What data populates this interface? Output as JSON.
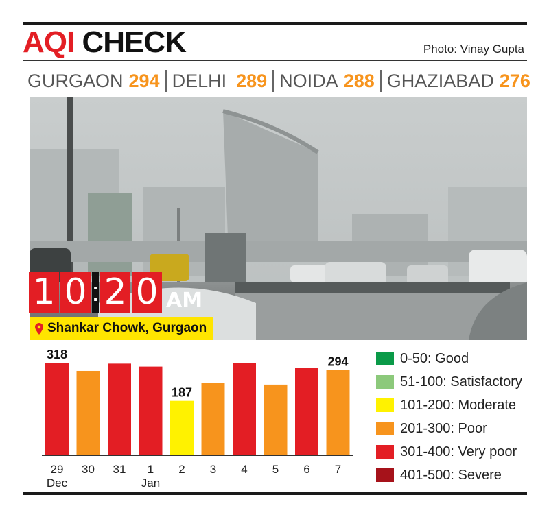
{
  "header": {
    "title_part1": "AQI",
    "title_part2": "CHECK",
    "credit": "Photo: Vinay Gupta"
  },
  "cities": [
    {
      "name": "GURGAON",
      "aqi": "294"
    },
    {
      "name": "DELHI",
      "aqi": "289"
    },
    {
      "name": "NOIDA",
      "aqi": "288"
    },
    {
      "name": "GHAZIABAD",
      "aqi": "276"
    }
  ],
  "photo": {
    "time_digits": [
      "1",
      "0",
      "2",
      "0"
    ],
    "time_suffix": "AM",
    "location": "Shankar Chowk, Gurgaon"
  },
  "chart_data": {
    "type": "bar",
    "title": "",
    "xlabel": "",
    "ylabel": "",
    "categories": [
      "29",
      "30",
      "31",
      "1",
      "2",
      "3",
      "4",
      "5",
      "6",
      "7"
    ],
    "category_sublabels": [
      "Dec",
      "",
      "",
      "Jan",
      "",
      "",
      "",
      "",
      "",
      ""
    ],
    "values": [
      318,
      290,
      315,
      305,
      187,
      248,
      318,
      243,
      301,
      294
    ],
    "data_labels": [
      {
        "index": 0,
        "text": "318"
      },
      {
        "index": 4,
        "text": "187"
      },
      {
        "index": 9,
        "text": "294"
      }
    ],
    "bar_colors": [
      "#e31e24",
      "#f7941d",
      "#e31e24",
      "#e31e24",
      "#fff200",
      "#f7941d",
      "#e31e24",
      "#f7941d",
      "#e31e24",
      "#f7941d"
    ],
    "ylim": [
      0,
      330
    ],
    "grid": false,
    "legend_position": "right",
    "legend": [
      {
        "label": "0-50: Good",
        "color": "#0a9a48"
      },
      {
        "label": "51-100: Satisfactory",
        "color": "#8cc97b"
      },
      {
        "label": "101-200: Moderate",
        "color": "#fff200"
      },
      {
        "label": "201-300: Poor",
        "color": "#f7941d"
      },
      {
        "label": "301-400: Very poor",
        "color": "#e31e24"
      },
      {
        "label": "401-500: Severe",
        "color": "#a6121a"
      }
    ]
  }
}
